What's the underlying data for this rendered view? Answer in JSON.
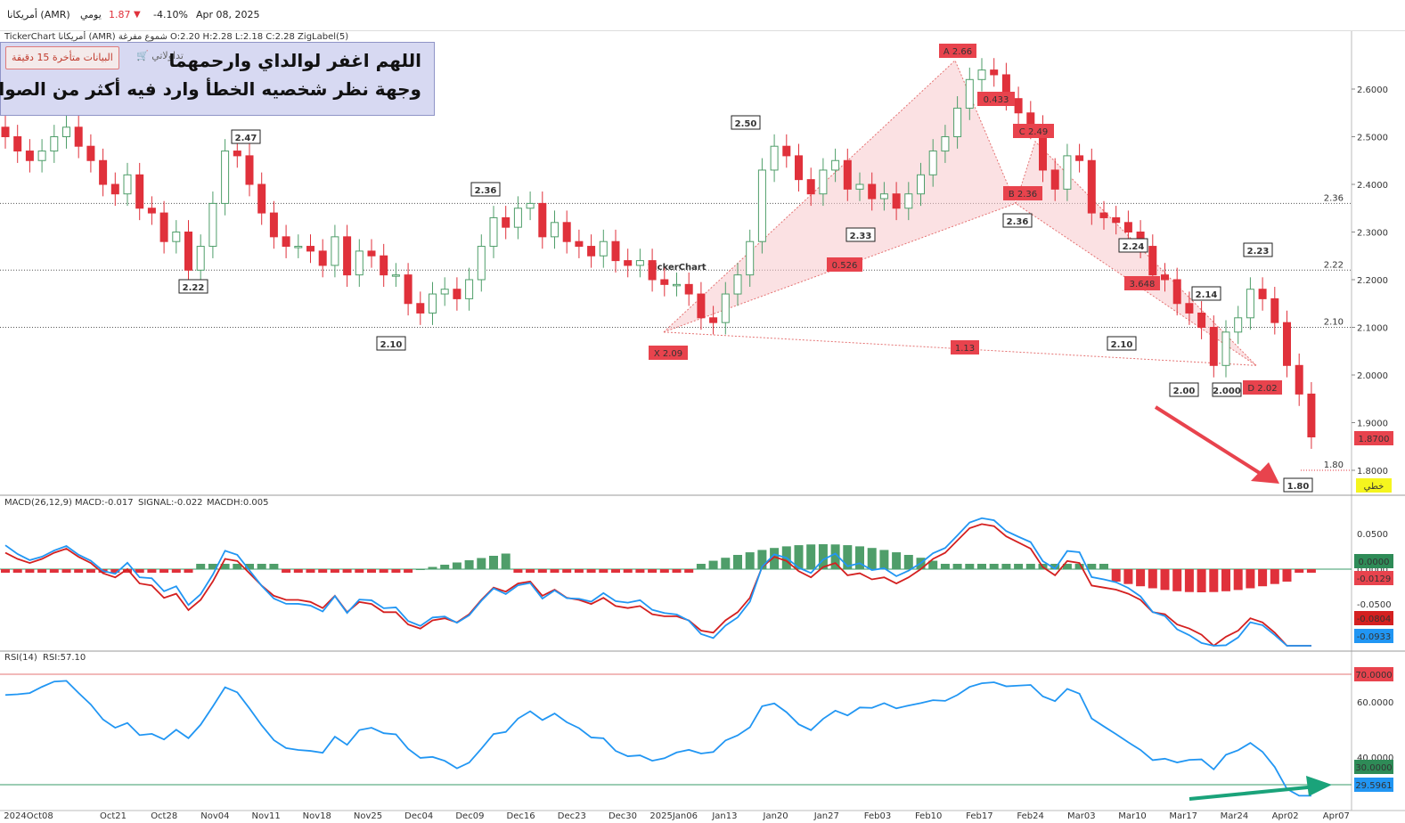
{
  "topbar": {
    "symbol": "أمريكانا (AMR)",
    "period": "يومي",
    "last_price": "1.87",
    "change_pct": "-4.10%",
    "date": "Apr 08, 2025",
    "down_color": "#e0313b"
  },
  "legend": {
    "source": "TickerChart",
    "symbol": "أمريكانا (AMR)",
    "chart_kind": "شموع مفرغة",
    "ohlc": "O:2.20   H:2.28   L:2.18   C:2.28",
    "indicator": "ZigLabel(5)"
  },
  "banner": {
    "line1": "اللهم اغفر لوالداي وارحمهما",
    "line2": "وجهة نظر شخصيه الخطأ وارد فيه أكثر من الصواب",
    "delay_label": "البيانات متأخرة 15 دقيقة",
    "trade_label": "تداولاتي",
    "cart_icon": "cart-icon"
  },
  "watermark": "TickerChart",
  "colors": {
    "up": "#4f9e6a",
    "down": "#e0313b",
    "macd": "#2196f3",
    "signal": "#d42020",
    "harmonic_fill": "#f7c8cc",
    "level_236": "#1f8c6b",
    "level_222": "#f5a623",
    "level_210": "#e0313b"
  },
  "chart_data": [
    {
      "type": "candlestick",
      "title": "أمريكانا (AMR)",
      "yaxis": {
        "ticks": [
          "1.8000",
          "1.9000",
          "2.0000",
          "2.1000",
          "2.2000",
          "2.3000",
          "2.4000",
          "2.5000",
          "2.6000"
        ],
        "range": [
          1.76,
          2.72
        ]
      },
      "xaxis": {
        "labels": [
          "2024Oct08",
          "Oct21",
          "Oct28",
          "Nov04",
          "Nov11",
          "Nov18",
          "Nov25",
          "Dec04",
          "Dec09",
          "Dec16",
          "Dec23",
          "Dec30",
          "2025Jan06",
          "Jan13",
          "Jan20",
          "Jan27",
          "Feb03",
          "Feb10",
          "Feb17",
          "Feb24",
          "Mar03",
          "Mar10",
          "Mar17",
          "Mar24",
          "Apr02",
          "Apr07"
        ]
      },
      "closes": [
        2.5,
        2.47,
        2.45,
        2.47,
        2.5,
        2.52,
        2.48,
        2.45,
        2.4,
        2.38,
        2.42,
        2.35,
        2.34,
        2.28,
        2.3,
        2.22,
        2.27,
        2.36,
        2.47,
        2.46,
        2.4,
        2.34,
        2.29,
        2.27,
        2.27,
        2.26,
        2.23,
        2.29,
        2.21,
        2.26,
        2.25,
        2.21,
        2.21,
        2.15,
        2.13,
        2.17,
        2.18,
        2.16,
        2.2,
        2.27,
        2.33,
        2.31,
        2.35,
        2.36,
        2.29,
        2.32,
        2.28,
        2.27,
        2.25,
        2.28,
        2.24,
        2.23,
        2.24,
        2.2,
        2.19,
        2.19,
        2.17,
        2.12,
        2.11,
        2.17,
        2.21,
        2.28,
        2.43,
        2.48,
        2.46,
        2.41,
        2.38,
        2.43,
        2.45,
        2.39,
        2.4,
        2.37,
        2.38,
        2.35,
        2.38,
        2.42,
        2.47,
        2.5,
        2.56,
        2.62,
        2.64,
        2.63,
        2.58,
        2.55,
        2.52,
        2.43,
        2.39,
        2.46,
        2.45,
        2.34,
        2.33,
        2.32,
        2.3,
        2.27,
        2.21,
        2.2,
        2.15,
        2.13,
        2.1,
        2.02,
        2.09,
        2.12,
        2.18,
        2.16,
        2.11,
        2.02,
        1.96,
        1.87
      ],
      "zigzag_labels": [
        "2.47",
        "2.50",
        "2.36",
        "2.22",
        "2.10",
        "2.33",
        "2.36",
        "2.24",
        "2.14",
        "2.23",
        "2.10",
        "2.00",
        "2.000",
        "1.80"
      ],
      "levels": [
        {
          "value": 2.36,
          "label": "2.36"
        },
        {
          "value": 2.22,
          "label": "2.22"
        },
        {
          "value": 2.1,
          "label": "2.10"
        },
        {
          "value": 1.8,
          "label": "1.80"
        }
      ],
      "harmonic": {
        "X": "X 2.09",
        "A": "A 2.66",
        "B": "B 2.36",
        "C": "C 2.49",
        "D": "D 2.02",
        "ratios": [
          "0.526",
          "0.433",
          "3.648",
          "1.13"
        ]
      },
      "last_price_tag": "1.8700",
      "line_tag": "خطي"
    },
    {
      "type": "line",
      "title": "MACD(26,12,9)",
      "series": [
        {
          "name": "MACD",
          "value_text": "MACD:-0.017"
        },
        {
          "name": "SIGNAL",
          "value_text": "SIGNAL:-0.022"
        },
        {
          "name": "MACDH",
          "value_text": "MACDH:0.005"
        }
      ],
      "yaxis": {
        "ticks": [
          "0.0500",
          "0.0000",
          "-0.0500"
        ]
      },
      "tags": [
        "0.0000",
        "-0.0129",
        "-0.0804",
        "-0.0933"
      ]
    },
    {
      "type": "line",
      "title": "RSI(14)",
      "series": [
        {
          "name": "RSI",
          "value_text": "RSI:57.10"
        }
      ],
      "yaxis": {
        "ticks": [
          "40.0000",
          "60.0000"
        ]
      },
      "levels": [
        70,
        30
      ],
      "tags": [
        "70.0000",
        "30.0000",
        "29.5961"
      ]
    }
  ]
}
